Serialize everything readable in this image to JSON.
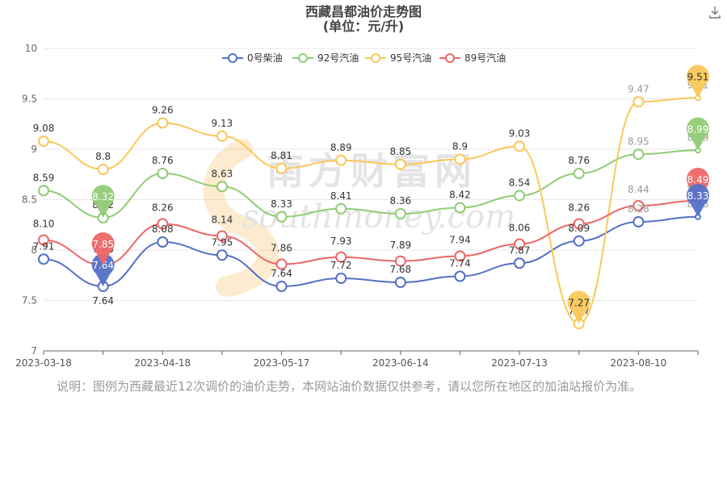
{
  "chart_data": {
    "type": "line",
    "title": "西藏昌都油价走势图",
    "subtitle": "(单位：元/升)",
    "ylim": [
      7,
      10
    ],
    "yticks": [
      "7",
      "7.5",
      "8",
      "8.5",
      "9",
      "9.5",
      "10"
    ],
    "xtick_labels": [
      "2023-03-18",
      "2023-04-18",
      "2023-05-17",
      "2023-06-14",
      "2023-07-13",
      "2023-08-10"
    ],
    "categories": [
      "2023-03-18",
      "",
      "2023-04-18",
      "",
      "2023-05-17",
      "",
      "2023-06-14",
      "",
      "2023-07-13",
      "",
      "2023-08-10",
      ""
    ],
    "series": [
      {
        "name": "0号柴油",
        "color": "#5470c6",
        "values": [
          7.91,
          7.64,
          8.08,
          7.95,
          7.64,
          7.72,
          7.68,
          7.74,
          7.87,
          8.09,
          8.28,
          8.33
        ]
      },
      {
        "name": "92号汽油",
        "color": "#91cc75",
        "values": [
          8.59,
          8.32,
          8.76,
          8.63,
          8.33,
          8.41,
          8.36,
          8.42,
          8.54,
          8.76,
          8.95,
          8.99
        ]
      },
      {
        "name": "95号汽油",
        "color": "#fac858",
        "values": [
          9.08,
          8.8,
          9.26,
          9.13,
          8.81,
          8.89,
          8.85,
          8.9,
          9.03,
          7.27,
          9.47,
          9.51
        ]
      },
      {
        "name": "89号汽油",
        "color": "#ee6666",
        "values": [
          8.1,
          7.85,
          8.26,
          8.14,
          7.86,
          7.93,
          7.89,
          7.94,
          8.06,
          8.26,
          8.44,
          8.49
        ]
      }
    ],
    "value_labels": {
      "0号柴油": [
        "7.91",
        "7.64",
        "8.08",
        "7.95",
        "7.64",
        "7.72",
        "7.68",
        "7.74",
        "7.87",
        "8.09",
        "8.28",
        "8.33"
      ],
      "92号汽油": [
        "8.59",
        "8.32",
        "8.76",
        "8.63",
        "8.33",
        "8.41",
        "8.36",
        "8.42",
        "8.54",
        "8.76",
        "8.95",
        "8.99"
      ],
      "95号汽油": [
        "9.08",
        "8.8",
        "9.26",
        "9.13",
        "8.81",
        "8.89",
        "8.85",
        "8.9",
        "9.03",
        "7.27",
        "9.47",
        "9.51"
      ],
      "89号汽油": [
        "8.10",
        "7.85",
        "8.26",
        "8.14",
        "7.86",
        "7.93",
        "7.89",
        "7.94",
        "8.06",
        "8.26",
        "8.44",
        "8.49"
      ]
    },
    "markers": [
      {
        "series": "0号柴油",
        "index": 1,
        "label": "7.64"
      },
      {
        "series": "92号汽油",
        "index": 1,
        "label": "8.32"
      },
      {
        "series": "89号汽油",
        "index": 1,
        "label": "7.85"
      },
      {
        "series": "95号汽油",
        "index": 9,
        "label": "7.27"
      },
      {
        "series": "95号汽油",
        "index": 11,
        "label": "9.51"
      },
      {
        "series": "92号汽油",
        "index": 11,
        "label": "8.99"
      },
      {
        "series": "89号汽油",
        "index": 11,
        "label": "8.49"
      },
      {
        "series": "0号柴油",
        "index": 11,
        "label": "8.33"
      }
    ],
    "legend_position": "top-center",
    "grid": "horizontal",
    "watermark": "南方财富网 southmoney.com"
  },
  "note": "说明：图例为西藏最近12次调价的油价走势，本网站油价数据仅供参考，请以您所在地区的加油站报价为准。",
  "icons": {
    "download": "download-icon"
  }
}
